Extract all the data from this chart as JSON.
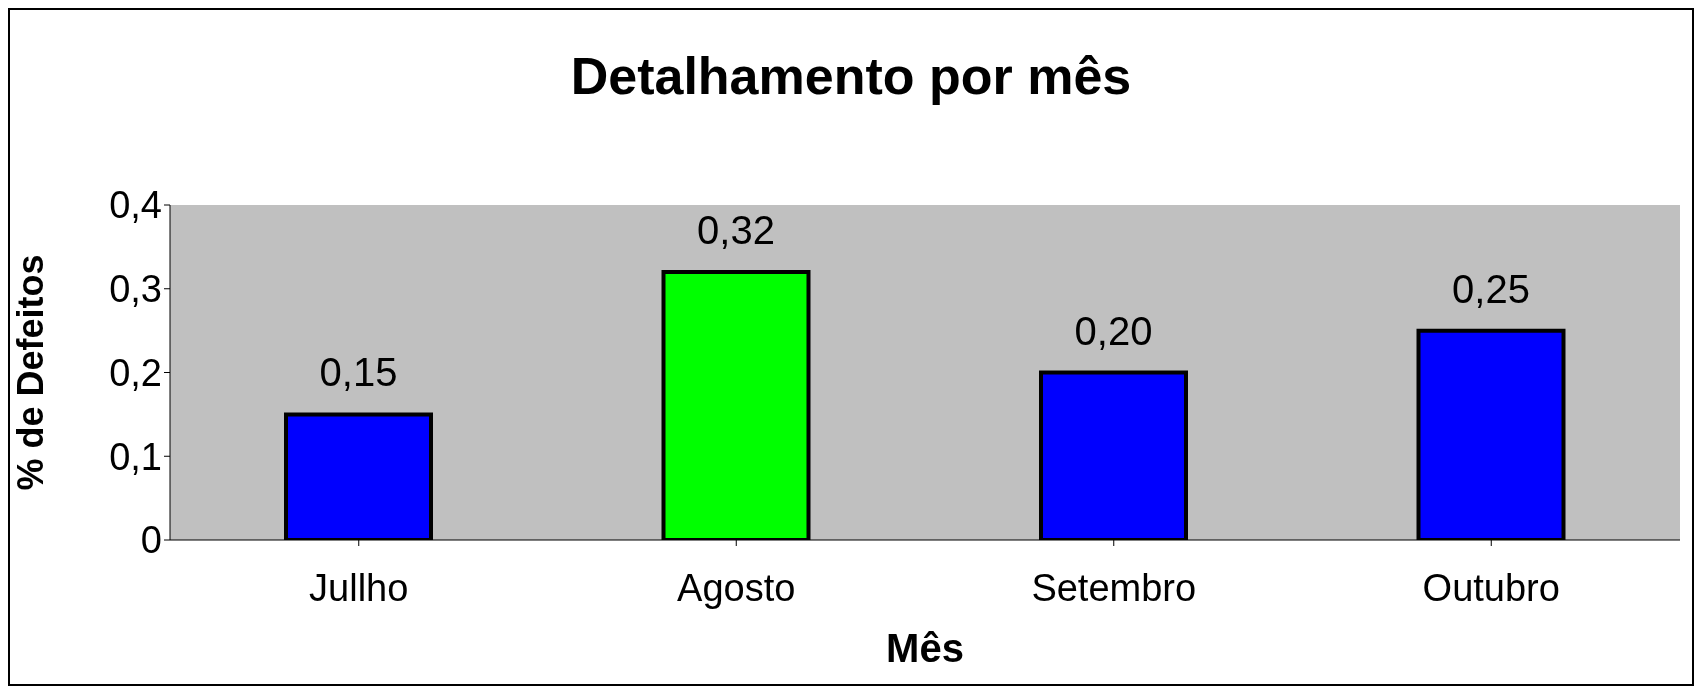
{
  "chart_data": {
    "type": "bar",
    "title": "Detalhamento por mês",
    "xlabel": "Mês",
    "ylabel": "% de Defeitos",
    "categories": [
      "Jullho",
      "Agosto",
      "Setembro",
      "Outubro"
    ],
    "values": [
      0.15,
      0.32,
      0.2,
      0.25
    ],
    "colors": [
      "#0000ff",
      "#00ff00",
      "#0000ff",
      "#0000ff"
    ],
    "value_labels": [
      "0,15",
      "0,32",
      "0,20",
      "0,25"
    ],
    "ylim": [
      0,
      0.4
    ],
    "yticks": [
      0,
      {
        "value": 0.1,
        "label": "0,1"
      },
      {
        "value": 0.2,
        "label": "0,2"
      },
      {
        "value": 0.3,
        "label": "0,3"
      },
      {
        "value": 0.4,
        "label": "0,4"
      }
    ],
    "grid": false,
    "legend": false
  }
}
